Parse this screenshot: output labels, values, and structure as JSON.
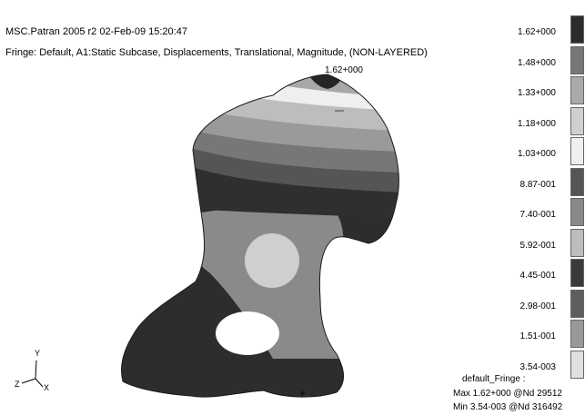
{
  "header": {
    "title": "MSC.Patran 2005 r2 02-Feb-09 15:20:47",
    "fringe": "Fringe: Default, A1:Static Subcase, Displacements, Translational, Magnitude, (NON-LAYERED)"
  },
  "plot": {
    "max_marker": "1.62+000"
  },
  "legend": {
    "values": [
      "1.62+000",
      "1.48+000",
      "1.33+000",
      "1.18+000",
      "1.03+000",
      "8.87-001",
      "7.40-001",
      "5.92-001",
      "4.45-001",
      "2.98-001",
      "1.51-001",
      "3.54-003"
    ],
    "colors": [
      "#2b2b2b",
      "#777777",
      "#aaaaaa",
      "#cfcfcf",
      "#f0f0f0",
      "#555555",
      "#888888",
      "#bdbdbd",
      "#3a3a3a",
      "#5e5e5e",
      "#999999",
      "#e0e0e0"
    ]
  },
  "footer": {
    "fringe_name": "default_Fringe :",
    "max": "Max 1.62+000 @Nd 29512",
    "min": "Min 3.54-003 @Nd 316492"
  },
  "triad": {
    "y": "Y",
    "z": "Z",
    "x": "X"
  },
  "cursor": "+"
}
